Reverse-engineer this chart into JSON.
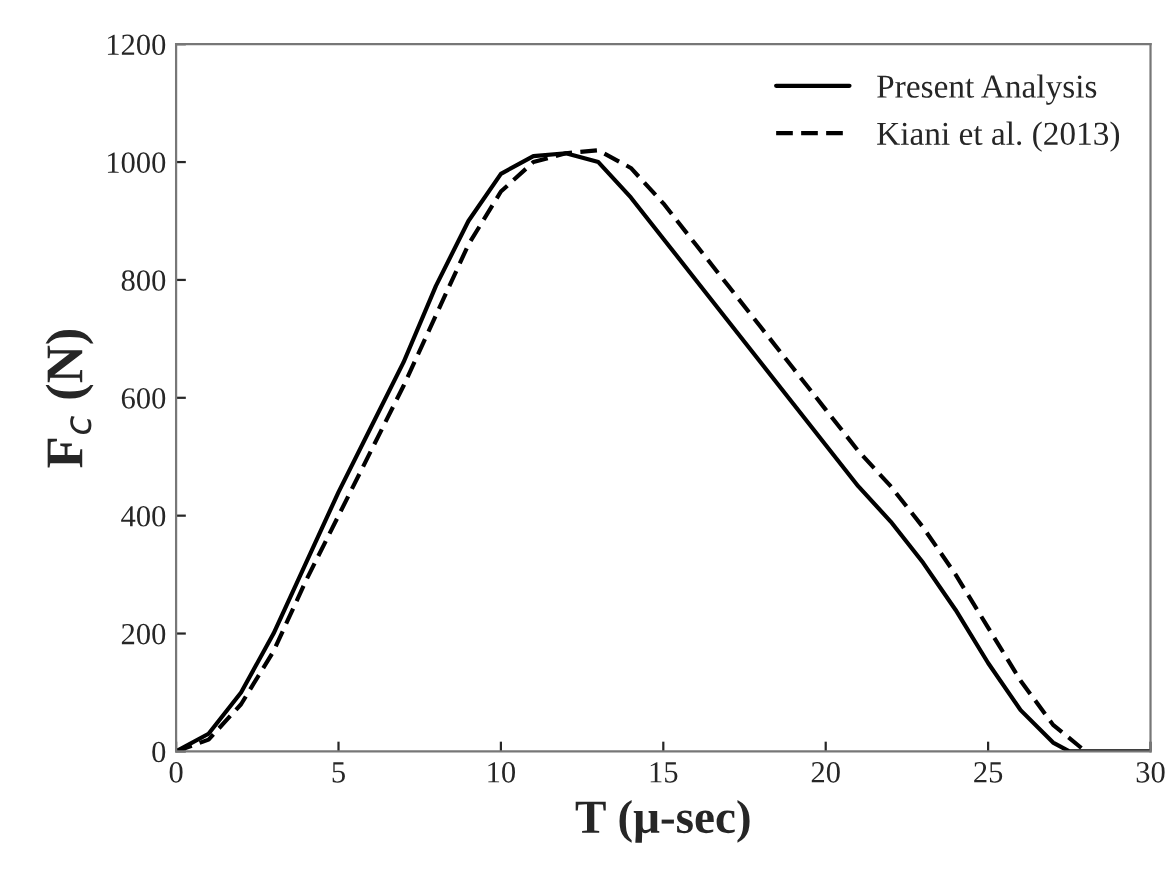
{
  "chart_data": {
    "type": "line",
    "xlabel": "T (μ-sec)",
    "ylabel": "F$_{c}$ (N)",
    "xlim": [
      0,
      30
    ],
    "xticks": [
      0,
      5,
      10,
      15,
      20,
      25,
      30
    ],
    "ylim": [
      0,
      1200
    ],
    "yticks": [
      0,
      200,
      400,
      600,
      800,
      1000,
      1200
    ],
    "grid": false,
    "legend": "top right",
    "marker": "none",
    "series": [
      {
        "name": "Present Analysis",
        "color": "#000000",
        "line_style": "solid",
        "x": [
          0,
          1,
          2,
          3,
          4,
          5,
          6,
          7,
          8,
          9,
          10,
          11,
          12,
          13,
          14,
          15,
          16,
          17,
          18,
          19,
          20,
          21,
          22,
          23,
          24,
          25,
          26,
          27,
          27.5,
          30
        ],
        "values": [
          0,
          30,
          100,
          200,
          320,
          440,
          550,
          660,
          790,
          900,
          980,
          1010,
          1015,
          1000,
          940,
          870,
          800,
          730,
          660,
          590,
          520,
          450,
          390,
          320,
          240,
          150,
          70,
          15,
          0,
          0
        ]
      },
      {
        "name": "Kiani et al. (2013)",
        "color": "#000000",
        "line_style": "dashed",
        "x": [
          0,
          1,
          2,
          3,
          4,
          5,
          6,
          7,
          8,
          9,
          10,
          11,
          12,
          13,
          14,
          15,
          16,
          17,
          18,
          19,
          20,
          21,
          22,
          23,
          24,
          25,
          26,
          27,
          28
        ],
        "values": [
          0,
          20,
          80,
          170,
          290,
          400,
          510,
          620,
          740,
          860,
          950,
          1000,
          1015,
          1020,
          990,
          930,
          860,
          790,
          720,
          650,
          580,
          510,
          450,
          380,
          300,
          210,
          120,
          45,
          0
        ]
      }
    ]
  }
}
